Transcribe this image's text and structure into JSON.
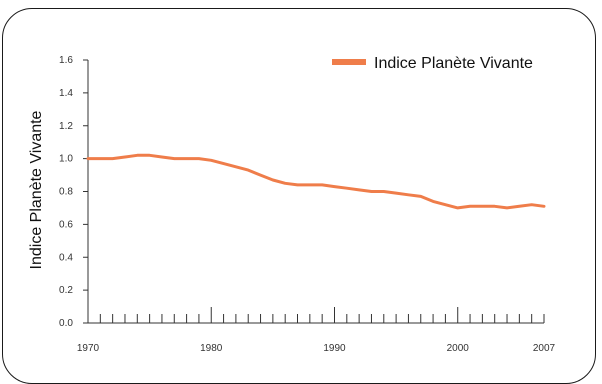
{
  "chart_data": {
    "type": "line",
    "ylabel": "Indice Planète Vivante",
    "xlabel": "",
    "ylim": [
      0.0,
      1.6
    ],
    "xlim": [
      1970,
      2007
    ],
    "yticks": [
      "0.0",
      "0.2",
      "0.4",
      "0.6",
      "0.8",
      "1.0",
      "1.2",
      "1.4",
      "1.6"
    ],
    "xticks": [
      "1970",
      "1980",
      "1990",
      "2000",
      "2007"
    ],
    "legend": {
      "position": "top-right",
      "label": "Indice Planète Vivante"
    },
    "grid": false,
    "series": [
      {
        "name": "Indice Planète Vivante",
        "color": "#ef7d4a",
        "x": [
          1970,
          1971,
          1972,
          1973,
          1974,
          1975,
          1976,
          1977,
          1978,
          1979,
          1980,
          1981,
          1982,
          1983,
          1984,
          1985,
          1986,
          1987,
          1988,
          1989,
          1990,
          1991,
          1992,
          1993,
          1994,
          1995,
          1996,
          1997,
          1998,
          1999,
          2000,
          2001,
          2002,
          2003,
          2004,
          2005,
          2006,
          2007
        ],
        "values": [
          1.0,
          1.0,
          1.0,
          1.01,
          1.02,
          1.02,
          1.01,
          1.0,
          1.0,
          1.0,
          0.99,
          0.97,
          0.95,
          0.93,
          0.9,
          0.87,
          0.85,
          0.84,
          0.84,
          0.84,
          0.83,
          0.82,
          0.81,
          0.8,
          0.8,
          0.79,
          0.78,
          0.77,
          0.74,
          0.72,
          0.7,
          0.71,
          0.71,
          0.71,
          0.7,
          0.71,
          0.72,
          0.71
        ]
      }
    ]
  }
}
